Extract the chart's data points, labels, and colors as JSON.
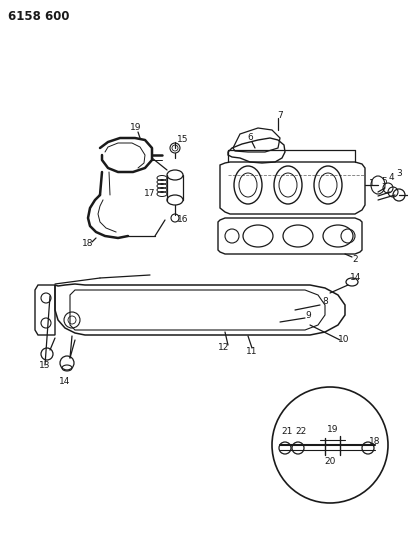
{
  "title_code": "6158 600",
  "background_color": "#ffffff",
  "line_color": "#1a1a1a",
  "fig_width": 4.08,
  "fig_height": 5.33,
  "dpi": 100
}
